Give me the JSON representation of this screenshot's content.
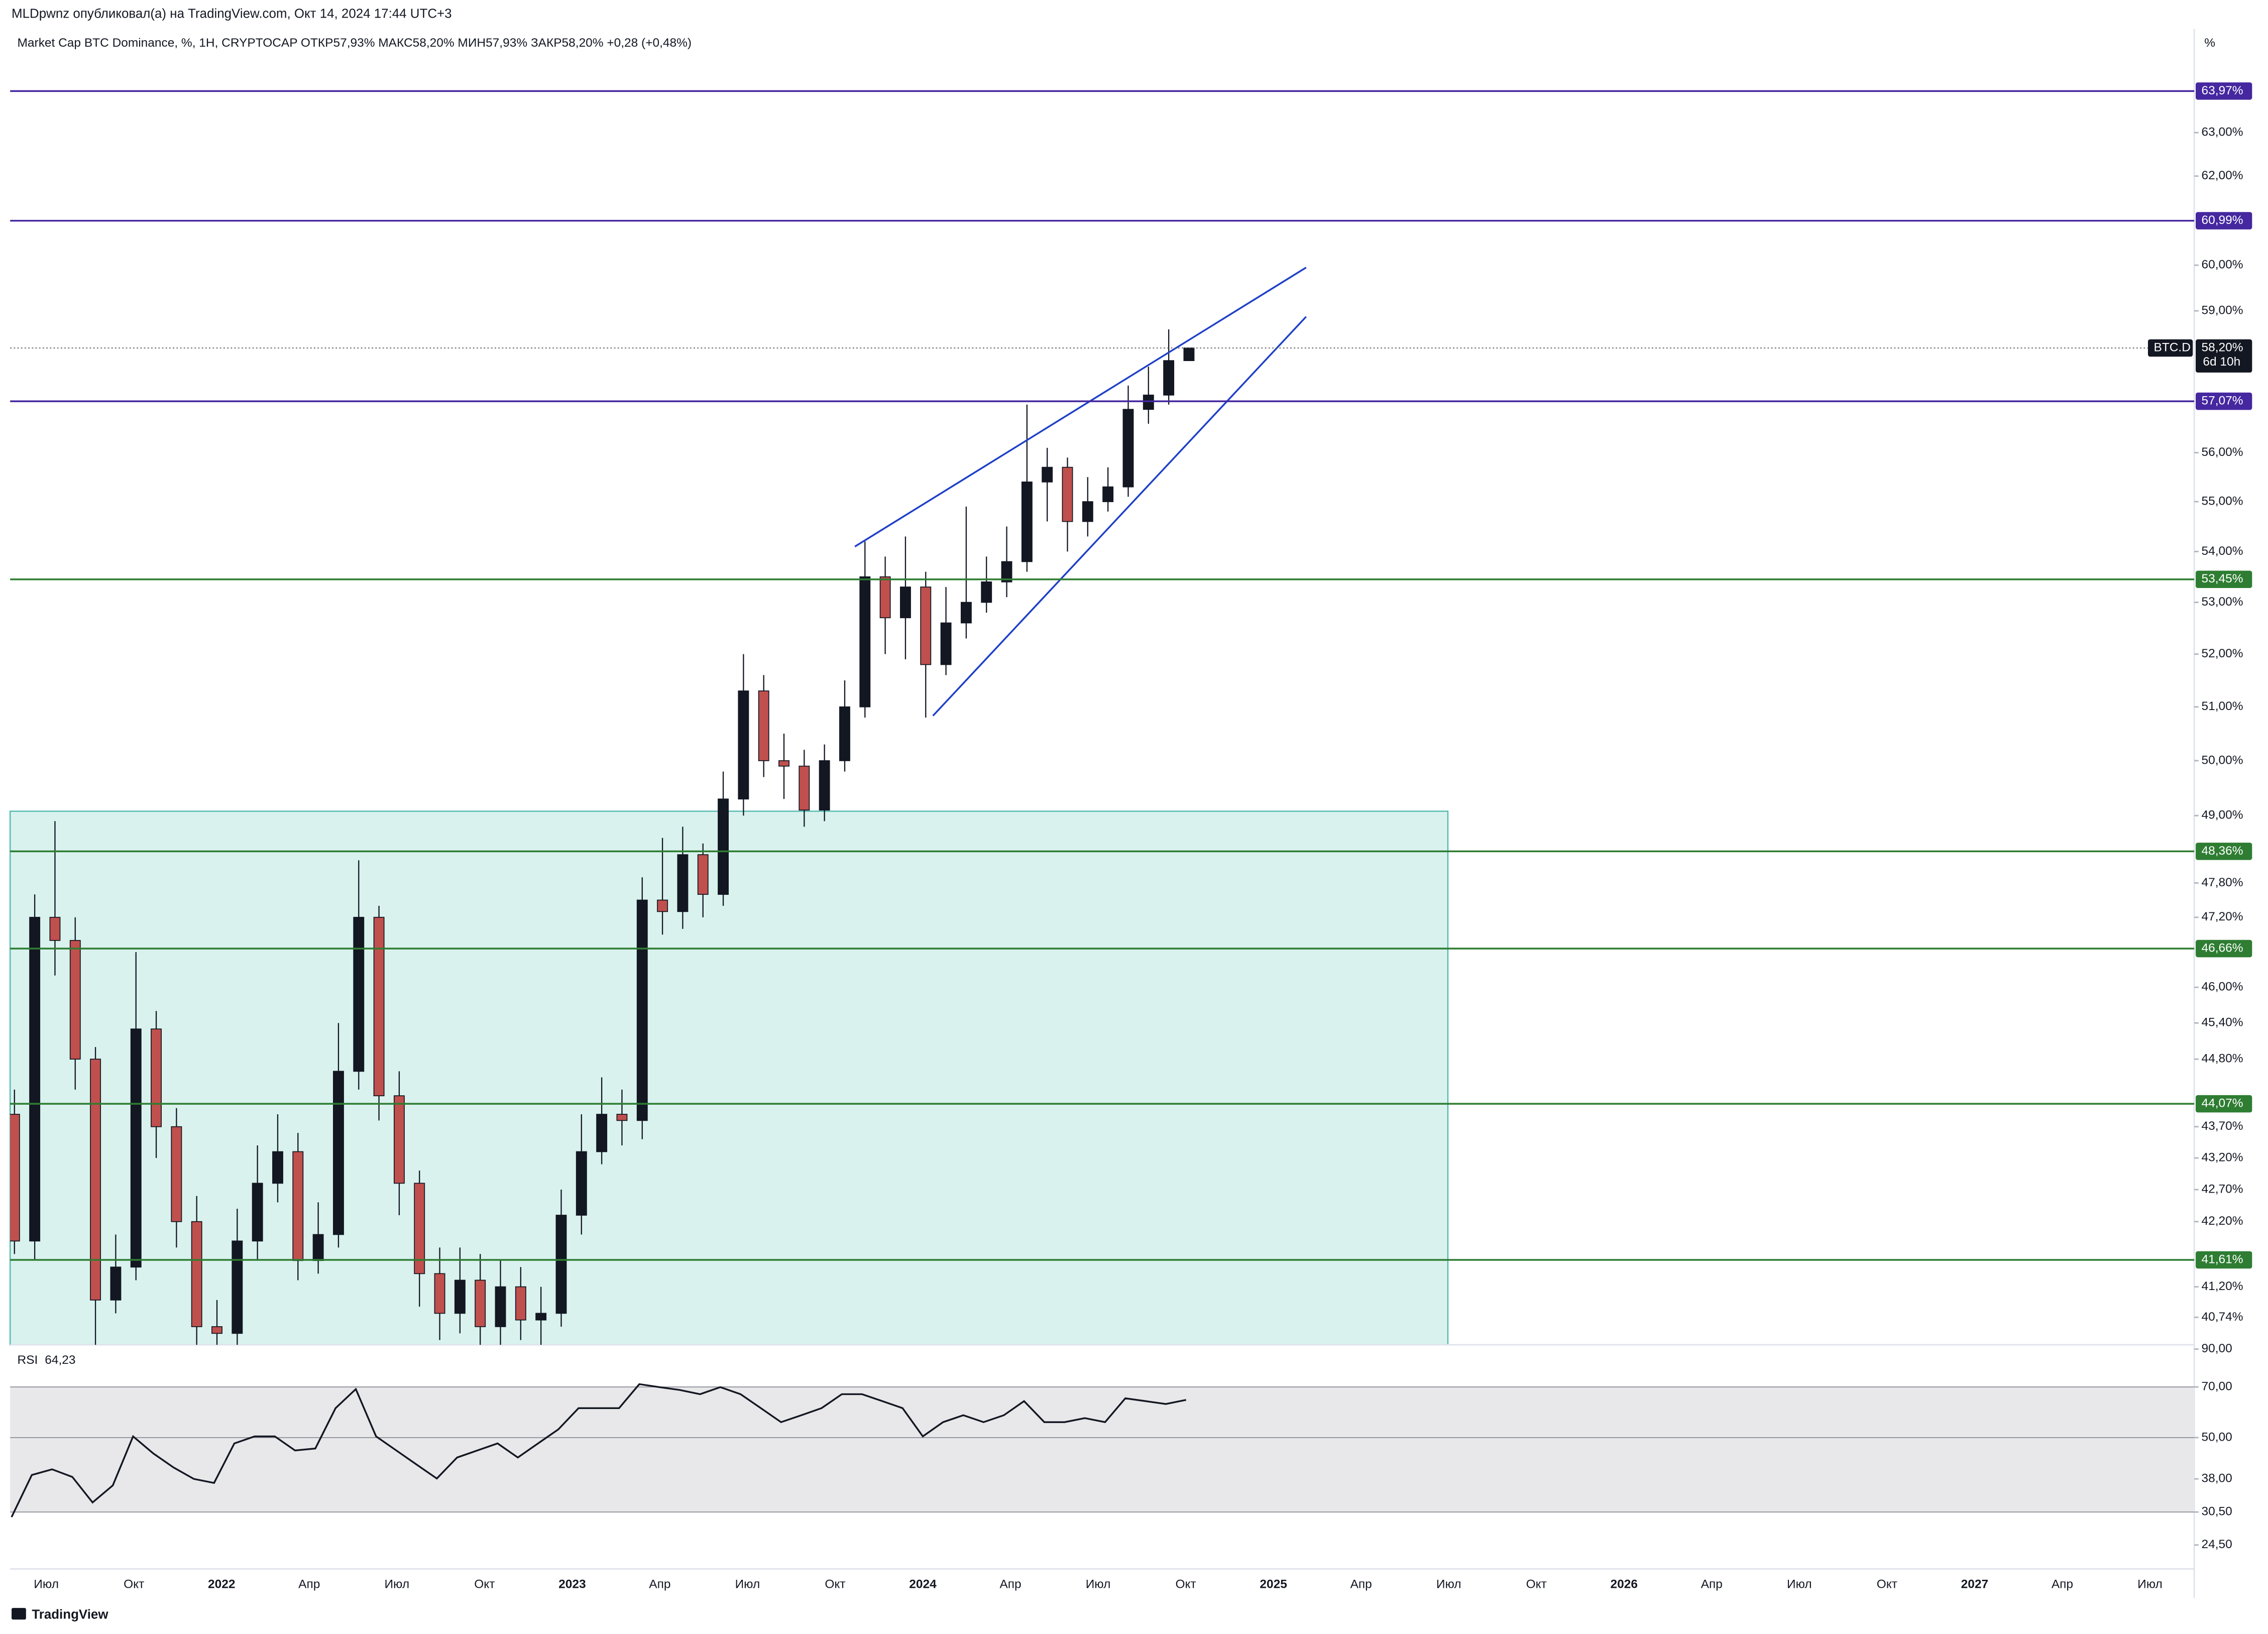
{
  "header": {
    "author_line": "MLDpwnz опубликовал(а) на TradingView.com, Окт 14, 2024 17:44 UTC+3"
  },
  "footer": {
    "brand": "TradingView"
  },
  "chart_data": [
    {
      "type": "candlestick",
      "title": "Market Cap BTC Dominance, %, 1H, CRYPTOCAP  ОТКР57,93%  МАКС58,20%  МИН57,93%  ЗАКР58,20%  +0,28 (+0,48%)",
      "symbol": "BTC.D",
      "countdown": "6d 10h",
      "axis_unit": "%",
      "last_value": {
        "value": 58.2,
        "label": "58,20%"
      },
      "open": [
        43.9,
        41.9,
        47.2,
        46.8,
        44.8,
        41.0,
        41.5,
        45.3,
        43.7,
        42.2,
        40.6,
        40.5,
        41.9,
        42.8,
        43.3,
        41.6,
        42.0,
        44.6,
        47.2,
        44.2,
        42.8,
        41.4,
        40.8,
        41.3,
        40.6,
        41.2,
        40.7,
        40.8,
        42.3,
        43.3,
        43.9,
        43.8,
        47.5,
        47.3,
        48.3,
        47.6,
        49.3,
        51.3,
        50.0,
        49.9,
        49.1,
        50.0,
        51.0,
        53.5,
        52.7,
        53.3,
        51.8,
        52.6,
        53.0,
        53.4,
        53.8,
        55.4,
        55.7,
        54.6,
        55.0,
        55.3,
        56.9,
        57.2,
        57.93
      ],
      "high": [
        44.3,
        47.6,
        48.9,
        47.2,
        45.0,
        42.0,
        46.6,
        45.6,
        44.0,
        42.6,
        41.0,
        42.4,
        43.4,
        43.9,
        43.6,
        42.5,
        45.4,
        48.2,
        47.4,
        44.6,
        43.0,
        41.8,
        41.8,
        41.7,
        41.6,
        41.5,
        41.2,
        42.7,
        43.9,
        44.5,
        44.3,
        47.9,
        48.6,
        48.8,
        48.5,
        49.8,
        52.0,
        51.6,
        50.5,
        50.2,
        50.3,
        51.5,
        54.2,
        53.9,
        54.3,
        53.6,
        53.3,
        54.9,
        53.9,
        54.5,
        57.0,
        56.1,
        55.9,
        55.5,
        55.7,
        57.4,
        57.8,
        58.6,
        58.2
      ],
      "low": [
        41.7,
        41.6,
        46.2,
        44.3,
        40.0,
        40.8,
        41.3,
        43.2,
        41.8,
        40.2,
        40.1,
        40.2,
        41.6,
        42.5,
        41.3,
        41.4,
        41.8,
        44.3,
        43.8,
        42.3,
        40.9,
        40.4,
        40.5,
        40.3,
        40.3,
        40.4,
        40.2,
        40.6,
        42.0,
        43.1,
        43.4,
        43.5,
        46.9,
        47.0,
        47.2,
        47.4,
        49.0,
        49.7,
        49.3,
        48.8,
        48.9,
        49.8,
        50.8,
        52.0,
        51.9,
        50.8,
        51.6,
        52.3,
        52.8,
        53.1,
        53.6,
        54.6,
        54.0,
        54.3,
        54.8,
        55.1,
        56.6,
        57.0,
        57.93
      ],
      "close": [
        41.9,
        47.2,
        46.8,
        44.8,
        41.0,
        41.5,
        45.3,
        43.7,
        42.2,
        40.6,
        40.5,
        41.9,
        42.8,
        43.3,
        41.6,
        42.0,
        44.6,
        47.2,
        44.2,
        42.8,
        41.4,
        40.8,
        41.3,
        40.6,
        41.2,
        40.7,
        40.8,
        42.3,
        43.3,
        43.9,
        43.8,
        47.5,
        47.3,
        48.3,
        47.6,
        49.3,
        51.3,
        50.0,
        49.9,
        49.1,
        50.0,
        51.0,
        53.5,
        52.7,
        53.3,
        51.8,
        52.6,
        53.0,
        53.4,
        53.8,
        55.4,
        55.7,
        54.6,
        55.0,
        55.3,
        56.9,
        57.2,
        57.93,
        58.2
      ],
      "up_color": "#131722",
      "down_color": "#c0504d",
      "ylim": [
        40.33,
        65.45
      ],
      "log_scale": true,
      "yticks": [
        {
          "value": 63,
          "label": "63,00%"
        },
        {
          "value": 62,
          "label": "62,00%"
        },
        {
          "value": 60,
          "label": "60,00%"
        },
        {
          "value": 59,
          "label": "59,00%"
        },
        {
          "value": 56,
          "label": "56,00%"
        },
        {
          "value": 55,
          "label": "55,00%"
        },
        {
          "value": 54,
          "label": "54,00%"
        },
        {
          "value": 53,
          "label": "53,00%"
        },
        {
          "value": 52,
          "label": "52,00%"
        },
        {
          "value": 51,
          "label": "51,00%"
        },
        {
          "value": 50,
          "label": "50,00%"
        },
        {
          "value": 49,
          "label": "49,00%"
        },
        {
          "value": 47.8,
          "label": "47,80%"
        },
        {
          "value": 47.2,
          "label": "47,20%"
        },
        {
          "value": 46,
          "label": "46,00%"
        },
        {
          "value": 45.4,
          "label": "45,40%"
        },
        {
          "value": 44.8,
          "label": "44,80%"
        },
        {
          "value": 43.7,
          "label": "43,70%"
        },
        {
          "value": 43.2,
          "label": "43,20%"
        },
        {
          "value": 42.7,
          "label": "42,70%"
        },
        {
          "value": 42.2,
          "label": "42,20%"
        },
        {
          "value": 41.2,
          "label": "41,20%"
        },
        {
          "value": 40.74,
          "label": "40,74%"
        }
      ],
      "levels": [
        {
          "value": 63.97,
          "label": "63,97%",
          "color": "#4527a0"
        },
        {
          "value": 60.99,
          "label": "60,99%",
          "color": "#4527a0"
        },
        {
          "value": 57.07,
          "label": "57,07%",
          "color": "#4527a0"
        },
        {
          "value": 53.45,
          "label": "53,45%",
          "color": "#2e7d32"
        },
        {
          "value": 48.36,
          "label": "48,36%",
          "color": "#2e7d32"
        },
        {
          "value": 46.66,
          "label": "46,66%",
          "color": "#2e7d32"
        },
        {
          "value": 44.07,
          "label": "44,07%",
          "color": "#2e7d32"
        },
        {
          "value": 41.61,
          "label": "41,61%",
          "color": "#2e7d32"
        }
      ],
      "x_labels": [
        "Июл",
        "Окт",
        "2022",
        "Апр",
        "Июл",
        "Окт",
        "2023",
        "Апр",
        "Июл",
        "Окт",
        "2024",
        "Апр",
        "Июл",
        "Окт",
        "2025",
        "Апр",
        "Июл",
        "Окт",
        "2026",
        "Апр",
        "Июл",
        "Окт",
        "2027",
        "Апр",
        "Июл"
      ]
    },
    {
      "type": "line",
      "title": "RSI",
      "value_label": "64,23",
      "color": "#131722",
      "values": [
        29.5,
        39.0,
        40.5,
        38.5,
        32.5,
        36.4,
        50.4,
        45.0,
        41.0,
        38.0,
        37.0,
        48.1,
        50.4,
        50.4,
        45.9,
        46.5,
        60.8,
        69.0,
        50.4,
        45.9,
        41.8,
        38.1,
        43.8,
        45.9,
        48.1,
        43.8,
        48.1,
        52.8,
        60.8,
        60.8,
        60.8,
        71.3,
        69.9,
        68.6,
        66.7,
        69.9,
        66.7,
        60.8,
        55.4,
        58.0,
        60.8,
        66.7,
        66.7,
        63.7,
        60.8,
        50.4,
        55.4,
        58.0,
        55.4,
        58.0,
        63.7,
        55.4,
        55.4,
        56.9,
        55.4,
        64.9,
        63.7,
        62.5,
        64.23
      ],
      "ylim": [
        20.9,
        92.6
      ],
      "log_scale": true,
      "bands": [
        70,
        50,
        30.5
      ],
      "yticks": [
        {
          "value": 90,
          "label": "90,00"
        },
        {
          "value": 70,
          "label": "70,00"
        },
        {
          "value": 50,
          "label": "50,00"
        },
        {
          "value": 38,
          "label": "38,00"
        },
        {
          "value": 30.5,
          "label": "30,50"
        },
        {
          "value": 24.5,
          "label": "24,50"
        }
      ]
    }
  ]
}
